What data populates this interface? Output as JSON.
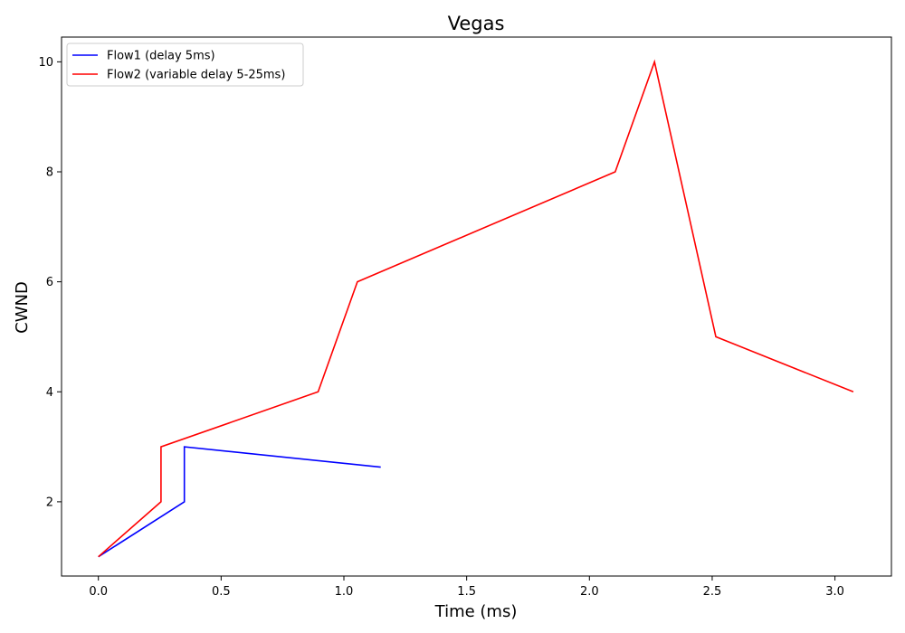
{
  "chart_data": {
    "type": "line",
    "title": "Vegas",
    "xlabel": "Time (ms)",
    "ylabel": "CWND",
    "xlim": [
      -0.15,
      3.23
    ],
    "ylim": [
      0.65,
      10.45
    ],
    "xticks": [
      0.0,
      0.5,
      1.0,
      1.5,
      2.0,
      2.5,
      3.0
    ],
    "xtick_labels": [
      "0.0",
      "0.5",
      "1.0",
      "1.5",
      "2.0",
      "2.5",
      "3.0"
    ],
    "yticks": [
      2,
      4,
      6,
      8,
      10
    ],
    "ytick_labels": [
      "2",
      "4",
      "6",
      "8",
      "10"
    ],
    "grid": false,
    "legend_position": "top-left",
    "series": [
      {
        "name": "Flow1 (delay 5ms)",
        "color": "#0000ff",
        "x": [
          0.0,
          0.35,
          0.35,
          1.15
        ],
        "y": [
          1.0,
          2.0,
          3.0,
          2.63
        ]
      },
      {
        "name": "Flow2 (variable delay 5-25ms)",
        "color": "#ff0000",
        "x": [
          0.0,
          0.255,
          0.255,
          0.895,
          1.055,
          2.105,
          2.265,
          2.515,
          3.075
        ],
        "y": [
          1.0,
          2.0,
          3.0,
          4.0,
          6.0,
          8.0,
          10.0,
          5.0,
          4.0
        ]
      }
    ]
  }
}
